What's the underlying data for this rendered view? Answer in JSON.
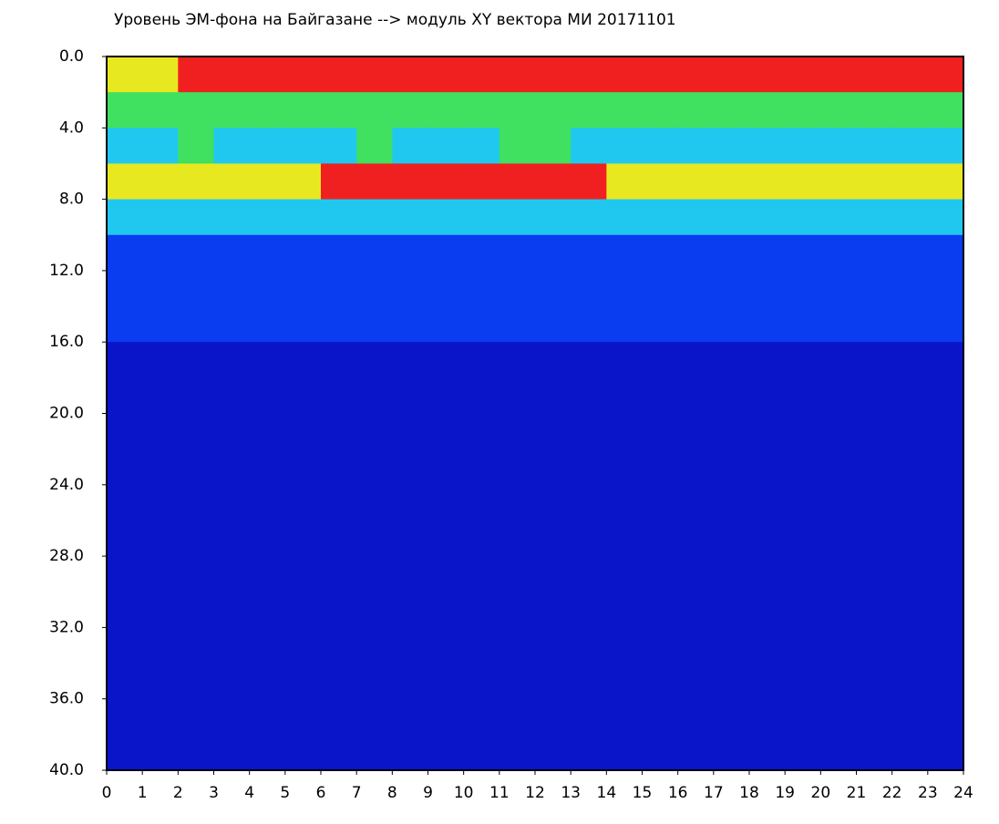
{
  "chart_data": {
    "type": "heatmap",
    "title": "Уровень ЭМ-фона на Байгазане  -->  модуль XY вектора МИ  20171101",
    "xlim": [
      0,
      24
    ],
    "ylim": [
      0,
      40
    ],
    "y_inverted": true,
    "xticks": [
      0,
      1,
      2,
      3,
      4,
      5,
      6,
      7,
      8,
      9,
      10,
      11,
      12,
      13,
      14,
      15,
      16,
      17,
      18,
      19,
      20,
      21,
      22,
      23,
      24
    ],
    "yticks": [
      {
        "value": 0,
        "label": "0.0"
      },
      {
        "value": 4,
        "label": "4.0"
      },
      {
        "value": 8,
        "label": "8.0"
      },
      {
        "value": 12,
        "label": "12.0"
      },
      {
        "value": 16,
        "label": "16.0"
      },
      {
        "value": 20,
        "label": "20.0"
      },
      {
        "value": 24,
        "label": "24.0"
      },
      {
        "value": 28,
        "label": "28.0"
      },
      {
        "value": 32,
        "label": "32.0"
      },
      {
        "value": 36,
        "label": "36.0"
      },
      {
        "value": 40,
        "label": "40.0"
      }
    ],
    "colors": [
      "#0a14c8",
      "#0a3cf0",
      "#20c8f0",
      "#40e060",
      "#e8e820",
      "#f02020"
    ],
    "z": [
      [
        4,
        4,
        5,
        5,
        5,
        5,
        5,
        5,
        5,
        5,
        5,
        5,
        5,
        5,
        5,
        5,
        5,
        5,
        5,
        5,
        5,
        5,
        5,
        5
      ],
      [
        3,
        3,
        3,
        3,
        3,
        3,
        3,
        3,
        3,
        3,
        3,
        3,
        3,
        3,
        3,
        3,
        3,
        3,
        3,
        3,
        3,
        3,
        3,
        3
      ],
      [
        2,
        2,
        3,
        2,
        2,
        2,
        2,
        3,
        2,
        2,
        2,
        3,
        3,
        2,
        2,
        2,
        2,
        2,
        2,
        2,
        2,
        2,
        2,
        2
      ],
      [
        4,
        4,
        4,
        4,
        4,
        4,
        5,
        5,
        5,
        5,
        5,
        5,
        5,
        5,
        4,
        4,
        4,
        4,
        4,
        4,
        4,
        4,
        4,
        4
      ],
      [
        2,
        2,
        2,
        2,
        2,
        2,
        2,
        2,
        2,
        2,
        2,
        2,
        2,
        2,
        2,
        2,
        2,
        2,
        2,
        2,
        2,
        2,
        2,
        2
      ],
      [
        1,
        1,
        1,
        1,
        1,
        1,
        1,
        1,
        1,
        1,
        1,
        1,
        1,
        1,
        1,
        1,
        1,
        1,
        1,
        1,
        1,
        1,
        1,
        1
      ],
      [
        1,
        1,
        1,
        1,
        1,
        1,
        1,
        1,
        1,
        1,
        1,
        1,
        1,
        1,
        1,
        1,
        1,
        1,
        1,
        1,
        1,
        1,
        1,
        1
      ],
      [
        1,
        1,
        1,
        1,
        1,
        1,
        1,
        1,
        1,
        1,
        1,
        1,
        1,
        1,
        1,
        1,
        1,
        1,
        1,
        1,
        1,
        1,
        1,
        1
      ],
      [
        0,
        0,
        0,
        0,
        0,
        0,
        0,
        0,
        0,
        0,
        0,
        0,
        0,
        0,
        0,
        0,
        0,
        0,
        0,
        0,
        0,
        0,
        0,
        0
      ],
      [
        0,
        0,
        0,
        0,
        0,
        0,
        0,
        0,
        0,
        0,
        0,
        0,
        0,
        0,
        0,
        0,
        0,
        0,
        0,
        0,
        0,
        0,
        0,
        0
      ],
      [
        0,
        0,
        0,
        0,
        0,
        0,
        0,
        0,
        0,
        0,
        0,
        0,
        0,
        0,
        0,
        0,
        0,
        0,
        0,
        0,
        0,
        0,
        0,
        0
      ],
      [
        0,
        0,
        0,
        0,
        0,
        0,
        0,
        0,
        0,
        0,
        0,
        0,
        0,
        0,
        0,
        0,
        0,
        0,
        0,
        0,
        0,
        0,
        0,
        0
      ],
      [
        0,
        0,
        0,
        0,
        0,
        0,
        0,
        0,
        0,
        0,
        0,
        0,
        0,
        0,
        0,
        0,
        0,
        0,
        0,
        0,
        0,
        0,
        0,
        0
      ],
      [
        0,
        0,
        0,
        0,
        0,
        0,
        0,
        0,
        0,
        0,
        0,
        0,
        0,
        0,
        0,
        0,
        0,
        0,
        0,
        0,
        0,
        0,
        0,
        0
      ],
      [
        0,
        0,
        0,
        0,
        0,
        0,
        0,
        0,
        0,
        0,
        0,
        0,
        0,
        0,
        0,
        0,
        0,
        0,
        0,
        0,
        0,
        0,
        0,
        0
      ],
      [
        0,
        0,
        0,
        0,
        0,
        0,
        0,
        0,
        0,
        0,
        0,
        0,
        0,
        0,
        0,
        0,
        0,
        0,
        0,
        0,
        0,
        0,
        0,
        0
      ],
      [
        0,
        0,
        0,
        0,
        0,
        0,
        0,
        0,
        0,
        0,
        0,
        0,
        0,
        0,
        0,
        0,
        0,
        0,
        0,
        0,
        0,
        0,
        0,
        0
      ],
      [
        0,
        0,
        0,
        0,
        0,
        0,
        0,
        0,
        0,
        0,
        0,
        0,
        0,
        0,
        0,
        0,
        0,
        0,
        0,
        0,
        0,
        0,
        0,
        0
      ],
      [
        0,
        0,
        0,
        0,
        0,
        0,
        0,
        0,
        0,
        0,
        0,
        0,
        0,
        0,
        0,
        0,
        0,
        0,
        0,
        0,
        0,
        0,
        0,
        0
      ],
      [
        0,
        0,
        0,
        0,
        0,
        0,
        0,
        0,
        0,
        0,
        0,
        0,
        0,
        0,
        0,
        0,
        0,
        0,
        0,
        0,
        0,
        0,
        0,
        0
      ]
    ]
  }
}
